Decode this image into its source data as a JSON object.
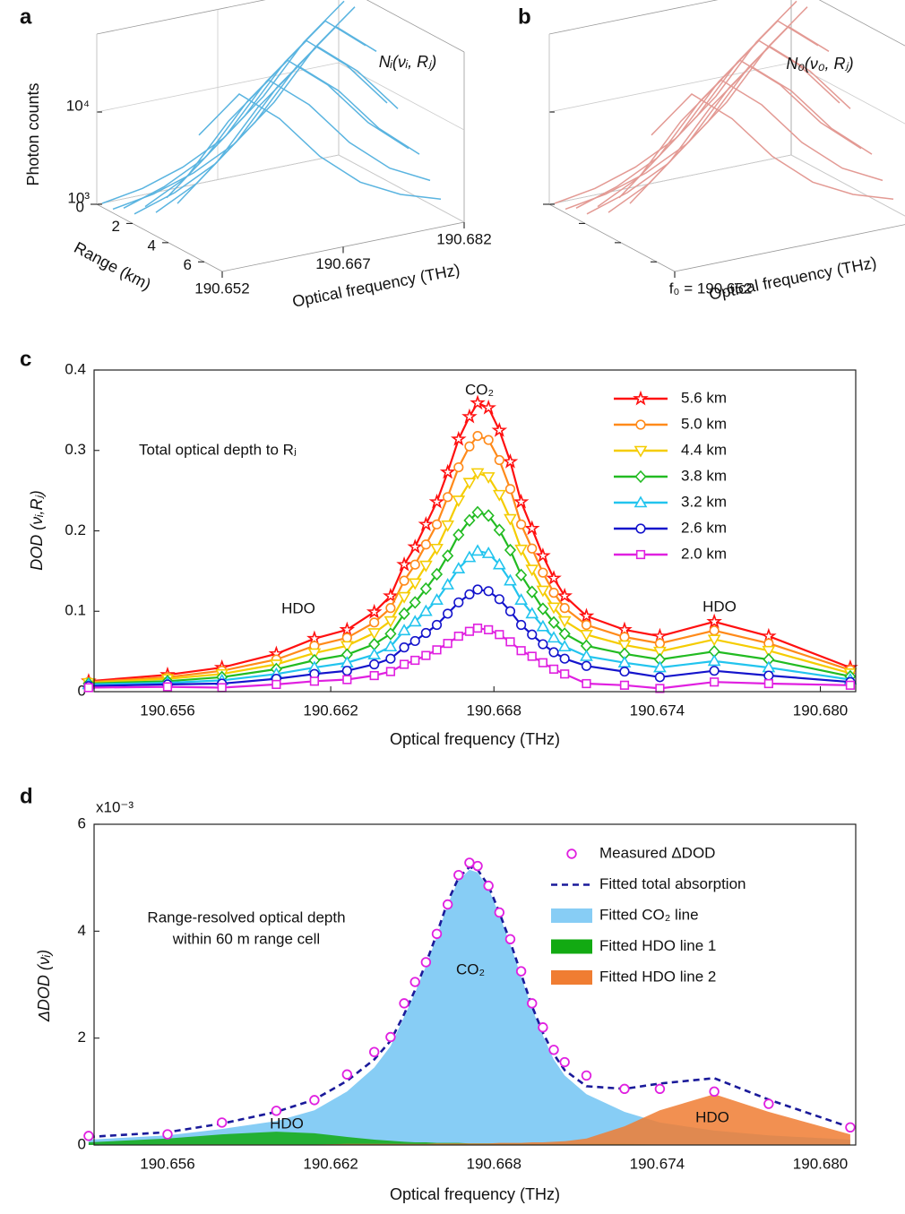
{
  "chart_data": [
    {
      "type": "waterfall3d",
      "panel_label": "a",
      "annotation": "Nᵢ(νᵢ, Rⱼ)",
      "color": "#5ab4e0",
      "xlabel": "Optical frequency (THz)",
      "ylabel": "Range (km)",
      "zlabel": "Photon counts",
      "x": [
        190.652,
        190.657,
        190.662,
        190.667,
        190.672,
        190.677,
        190.682
      ],
      "xlim": [
        190.652,
        190.682
      ],
      "xticks": [
        190.652,
        190.667,
        190.682
      ],
      "ylim": [
        0,
        7
      ],
      "yticks": [
        0,
        2,
        4,
        6
      ],
      "zlim": [
        1000,
        70000
      ],
      "zticks": [
        {
          "value": 1000,
          "label": "10³"
        },
        {
          "value": 10000,
          "label": "10⁴"
        }
      ],
      "log_z": true,
      "grid": true,
      "tick_labels": true,
      "series": [
        {
          "range": 0.3,
          "values": [
            1100,
            1300,
            1800,
            3000,
            7000,
            22000,
            50000
          ]
        },
        {
          "range": 0.9,
          "values": [
            1100,
            1300,
            1800,
            3000,
            7000,
            22000,
            50000
          ]
        },
        {
          "range": 1.5,
          "values": [
            1300,
            1800,
            3000,
            7000,
            22000,
            50000,
            22000
          ]
        },
        {
          "range": 2.1,
          "values": [
            1300,
            1800,
            3000,
            7000,
            22000,
            50000,
            22000
          ]
        },
        {
          "range": 2.7,
          "values": [
            1800,
            3000,
            7000,
            22000,
            50000,
            22000,
            7000
          ]
        },
        {
          "range": 3.3,
          "values": [
            1800,
            3000,
            7000,
            22000,
            50000,
            22000,
            7000
          ]
        },
        {
          "range": 3.9,
          "values": [
            3000,
            7000,
            22000,
            50000,
            22000,
            7000,
            3000
          ]
        },
        {
          "range": 4.5,
          "values": [
            3000,
            7000,
            22000,
            50000,
            22000,
            7000,
            3000
          ]
        },
        {
          "range": 5.1,
          "values": [
            7000,
            22000,
            50000,
            22000,
            7000,
            3000,
            1800
          ]
        },
        {
          "range": 5.7,
          "values": [
            22000,
            50000,
            22000,
            7000,
            3000,
            1800,
            1300
          ]
        }
      ]
    },
    {
      "type": "waterfall3d",
      "panel_label": "b",
      "annotation": "N₀(ν₀, Rⱼ)",
      "color": "#e39a94",
      "xlabel": "Optical frequency (THz)",
      "x": [
        190.652,
        190.657,
        190.662,
        190.667,
        190.672,
        190.677,
        190.682
      ],
      "xlim": [
        190.652,
        190.682
      ],
      "xticks": [
        {
          "value": 190.652,
          "label": "f₀ = 190.652"
        }
      ],
      "ylim": [
        0,
        7
      ],
      "yticks": [
        0,
        2,
        4,
        6
      ],
      "zlim": [
        1000,
        70000
      ],
      "zticks": [
        1000,
        10000
      ],
      "log_z": true,
      "grid": true,
      "tick_labels": false,
      "series": [
        {
          "range": 0.3,
          "values": [
            1100,
            1300,
            1800,
            3000,
            7000,
            22000,
            50000
          ]
        },
        {
          "range": 0.9,
          "values": [
            1100,
            1300,
            1800,
            3000,
            7000,
            22000,
            50000
          ]
        },
        {
          "range": 1.5,
          "values": [
            1300,
            1800,
            3000,
            7000,
            22000,
            50000,
            22000
          ]
        },
        {
          "range": 2.1,
          "values": [
            1300,
            1800,
            3000,
            7000,
            22000,
            50000,
            22000
          ]
        },
        {
          "range": 2.7,
          "values": [
            1800,
            3000,
            7000,
            22000,
            50000,
            22000,
            7000
          ]
        },
        {
          "range": 3.3,
          "values": [
            1800,
            3000,
            7000,
            22000,
            50000,
            22000,
            7000
          ]
        },
        {
          "range": 3.9,
          "values": [
            3000,
            7000,
            22000,
            50000,
            22000,
            7000,
            3000
          ]
        },
        {
          "range": 4.5,
          "values": [
            3000,
            7000,
            22000,
            50000,
            22000,
            7000,
            3000
          ]
        },
        {
          "range": 5.1,
          "values": [
            7000,
            22000,
            50000,
            22000,
            7000,
            3000,
            1800
          ]
        },
        {
          "range": 5.7,
          "values": [
            22000,
            50000,
            22000,
            7000,
            3000,
            1800,
            1300
          ]
        }
      ]
    },
    {
      "type": "line",
      "panel_label": "c",
      "xlabel": "Optical frequency (THz)",
      "ylabel": "DOD (νᵢ,Rⱼ)",
      "annotations": [
        "CO₂",
        "Total optical depth to Rⱼ",
        "HDO",
        "HDO"
      ],
      "x": [
        190.6531,
        190.656,
        190.658,
        190.66,
        190.6614,
        190.6626,
        190.6636,
        190.6642,
        190.6647,
        190.6651,
        190.6655,
        190.6659,
        190.6663,
        190.6667,
        190.6671,
        190.6674,
        190.6678,
        190.6682,
        190.6686,
        190.669,
        190.6694,
        190.6698,
        190.6702,
        190.6706,
        190.6714,
        190.6728,
        190.6741,
        190.6761,
        190.6781,
        190.6811
      ],
      "xlim": [
        190.6533,
        190.6813
      ],
      "xticks": [
        190.656,
        190.662,
        190.668,
        190.674,
        {
          "value": 190.68,
          "label": "190.680"
        }
      ],
      "ylim": [
        0,
        0.4
      ],
      "yticks": [
        0,
        0.1,
        0.2,
        0.3,
        0.4
      ],
      "legend": "upper right",
      "series": [
        {
          "name": "5.6 km",
          "color": "#ff1010",
          "marker": "star",
          "values": [
            0.013,
            0.021,
            0.03,
            0.047,
            0.066,
            0.077,
            0.099,
            0.119,
            0.158,
            0.18,
            0.208,
            0.236,
            0.273,
            0.314,
            0.342,
            0.359,
            0.353,
            0.325,
            0.286,
            0.236,
            0.203,
            0.169,
            0.141,
            0.119,
            0.094,
            0.077,
            0.069,
            0.087,
            0.069,
            0.03
          ]
        },
        {
          "name": "5.0 km",
          "color": "#ff8a1a",
          "marker": "circle",
          "values": [
            0.012,
            0.018,
            0.026,
            0.04,
            0.057,
            0.067,
            0.086,
            0.104,
            0.138,
            0.158,
            0.183,
            0.208,
            0.242,
            0.279,
            0.305,
            0.318,
            0.313,
            0.288,
            0.252,
            0.208,
            0.178,
            0.148,
            0.123,
            0.104,
            0.083,
            0.068,
            0.06,
            0.076,
            0.06,
            0.027
          ]
        },
        {
          "name": "4.4 km",
          "color": "#f5cc00",
          "marker": "triangle-down",
          "values": [
            0.011,
            0.016,
            0.022,
            0.034,
            0.048,
            0.057,
            0.073,
            0.088,
            0.118,
            0.135,
            0.157,
            0.178,
            0.207,
            0.238,
            0.26,
            0.272,
            0.267,
            0.245,
            0.215,
            0.177,
            0.152,
            0.126,
            0.105,
            0.088,
            0.071,
            0.058,
            0.05,
            0.065,
            0.051,
            0.023
          ]
        },
        {
          "name": "3.8 km",
          "color": "#22bb22",
          "marker": "diamond",
          "values": [
            0.01,
            0.013,
            0.018,
            0.028,
            0.039,
            0.046,
            0.059,
            0.072,
            0.097,
            0.111,
            0.128,
            0.146,
            0.169,
            0.195,
            0.213,
            0.223,
            0.219,
            0.201,
            0.176,
            0.145,
            0.124,
            0.103,
            0.086,
            0.072,
            0.057,
            0.047,
            0.04,
            0.05,
            0.04,
            0.019
          ]
        },
        {
          "name": "3.2 km",
          "color": "#22c4ee",
          "marker": "triangle-up",
          "values": [
            0.009,
            0.011,
            0.014,
            0.022,
            0.03,
            0.036,
            0.046,
            0.056,
            0.076,
            0.087,
            0.1,
            0.114,
            0.133,
            0.153,
            0.167,
            0.175,
            0.172,
            0.158,
            0.138,
            0.114,
            0.097,
            0.081,
            0.067,
            0.056,
            0.044,
            0.036,
            0.03,
            0.038,
            0.03,
            0.015
          ]
        },
        {
          "name": "2.6 km",
          "color": "#1414cc",
          "marker": "circle",
          "values": [
            0.007,
            0.009,
            0.01,
            0.016,
            0.022,
            0.026,
            0.034,
            0.041,
            0.055,
            0.063,
            0.073,
            0.083,
            0.097,
            0.111,
            0.121,
            0.127,
            0.125,
            0.115,
            0.1,
            0.083,
            0.071,
            0.059,
            0.049,
            0.041,
            0.032,
            0.025,
            0.018,
            0.026,
            0.02,
            0.012
          ]
        },
        {
          "name": "2.0 km",
          "color": "#e020e0",
          "marker": "square",
          "values": [
            0.005,
            0.006,
            0.005,
            0.009,
            0.013,
            0.015,
            0.02,
            0.025,
            0.034,
            0.039,
            0.045,
            0.052,
            0.06,
            0.069,
            0.075,
            0.079,
            0.077,
            0.071,
            0.062,
            0.051,
            0.044,
            0.036,
            0.028,
            0.022,
            0.01,
            0.008,
            0.004,
            0.012,
            0.01,
            0.008
          ]
        }
      ]
    },
    {
      "type": "area",
      "panel_label": "d",
      "xlabel": "Optical frequency (THz)",
      "ylabel": "ΔDOD (νᵢ)",
      "y_scale_label": "x10⁻³",
      "annotations": [
        "Range-resolved optical depth",
        "within 60 m range cell",
        "CO₂",
        "HDO",
        "HDO"
      ],
      "x": [
        190.6531,
        190.656,
        190.658,
        190.66,
        190.6614,
        190.6626,
        190.6636,
        190.6642,
        190.6647,
        190.6651,
        190.6655,
        190.6659,
        190.6663,
        190.6667,
        190.6671,
        190.6674,
        190.6678,
        190.6682,
        190.6686,
        190.669,
        190.6694,
        190.6698,
        190.6702,
        190.6706,
        190.6714,
        190.6728,
        190.6741,
        190.6761,
        190.6781,
        190.6811
      ],
      "xlim": [
        190.6533,
        190.6813
      ],
      "xticks": [
        190.656,
        190.662,
        190.668,
        190.674,
        {
          "value": 190.68,
          "label": "190.680"
        }
      ],
      "ylim": [
        0,
        6
      ],
      "yticks": [
        0,
        2,
        4,
        6
      ],
      "legend": "upper right",
      "series": [
        {
          "name": "Measured ΔDOD",
          "type": "scatter",
          "color": "#e020e0",
          "values": [
            0.17,
            0.2,
            0.42,
            0.64,
            0.84,
            1.32,
            1.74,
            2.02,
            2.65,
            3.05,
            3.42,
            3.95,
            4.5,
            5.05,
            5.28,
            5.22,
            4.85,
            4.35,
            3.85,
            3.25,
            2.65,
            2.2,
            1.78,
            1.55,
            1.3,
            1.05,
            1.05,
            1.0,
            0.77,
            0.33
          ]
        },
        {
          "name": "Fitted total absorption",
          "type": "line",
          "dashed": true,
          "color": "#1a1a9a",
          "values": [
            0.15,
            0.24,
            0.4,
            0.62,
            0.85,
            1.2,
            1.6,
            1.95,
            2.45,
            2.9,
            3.4,
            3.95,
            4.55,
            5.0,
            5.2,
            5.15,
            4.85,
            4.35,
            3.8,
            3.2,
            2.6,
            2.1,
            1.7,
            1.4,
            1.1,
            1.05,
            1.15,
            1.25,
            0.85,
            0.33
          ]
        },
        {
          "name": "Fitted CO₂ line",
          "type": "area",
          "color": "#87cdf5",
          "values": [
            0.1,
            0.18,
            0.3,
            0.45,
            0.65,
            1.0,
            1.45,
            1.85,
            2.4,
            2.85,
            3.35,
            3.9,
            4.5,
            4.95,
            5.15,
            5.1,
            4.8,
            4.3,
            3.75,
            3.15,
            2.55,
            2.05,
            1.6,
            1.3,
            0.95,
            0.62,
            0.42,
            0.27,
            0.18,
            0.1
          ]
        },
        {
          "name": "Fitted HDO line 1",
          "type": "area",
          "color": "#12aa12",
          "values": [
            0.05,
            0.12,
            0.2,
            0.25,
            0.22,
            0.15,
            0.1,
            0.08,
            0.06,
            0.05,
            0.05,
            0.04,
            0.04,
            0.04,
            0.03,
            0.03,
            0.03,
            0.03,
            0.03,
            0.03,
            0.02,
            0.02,
            0.02,
            0.02,
            0.02,
            0.02,
            0.01,
            0.01,
            0.01,
            0.01
          ]
        },
        {
          "name": "Fitted HDO line 2",
          "type": "area",
          "color": "#f07d32",
          "values": [
            0.0,
            0.01,
            0.01,
            0.01,
            0.01,
            0.02,
            0.02,
            0.02,
            0.02,
            0.02,
            0.02,
            0.03,
            0.03,
            0.03,
            0.03,
            0.03,
            0.03,
            0.04,
            0.04,
            0.04,
            0.05,
            0.05,
            0.06,
            0.07,
            0.12,
            0.35,
            0.65,
            0.95,
            0.62,
            0.2
          ]
        }
      ]
    }
  ]
}
